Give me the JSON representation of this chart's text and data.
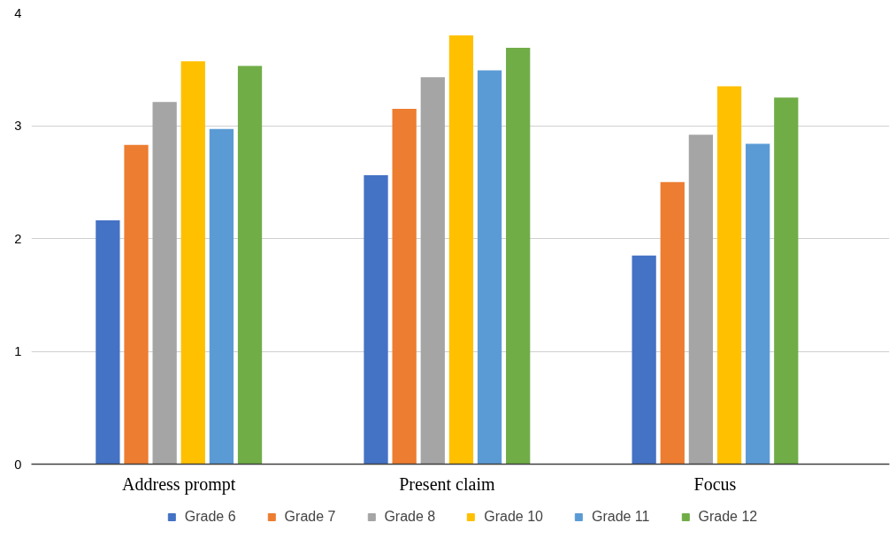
{
  "chart_data": {
    "type": "bar",
    "categories": [
      "Address prompt",
      "Present claim",
      "Focus"
    ],
    "series": [
      {
        "name": "Grade 6",
        "color": "#4472c4",
        "values": [
          2.16,
          2.56,
          1.85
        ]
      },
      {
        "name": "Grade 7",
        "color": "#ed7d31",
        "values": [
          2.83,
          3.15,
          2.5
        ]
      },
      {
        "name": "Grade 8",
        "color": "#a5a5a5",
        "values": [
          3.21,
          3.43,
          2.92
        ]
      },
      {
        "name": "Grade 10",
        "color": "#ffc000",
        "values": [
          3.57,
          3.8,
          3.35
        ]
      },
      {
        "name": "Grade 11",
        "color": "#5b9bd5",
        "values": [
          2.97,
          3.49,
          2.84
        ]
      },
      {
        "name": "Grade 12",
        "color": "#70ad47",
        "values": [
          3.53,
          3.69,
          3.25
        ]
      }
    ],
    "ylim": [
      0,
      4
    ],
    "yticks": [
      0,
      1,
      2,
      3,
      4
    ],
    "grid": "y",
    "legend": "bottom"
  }
}
